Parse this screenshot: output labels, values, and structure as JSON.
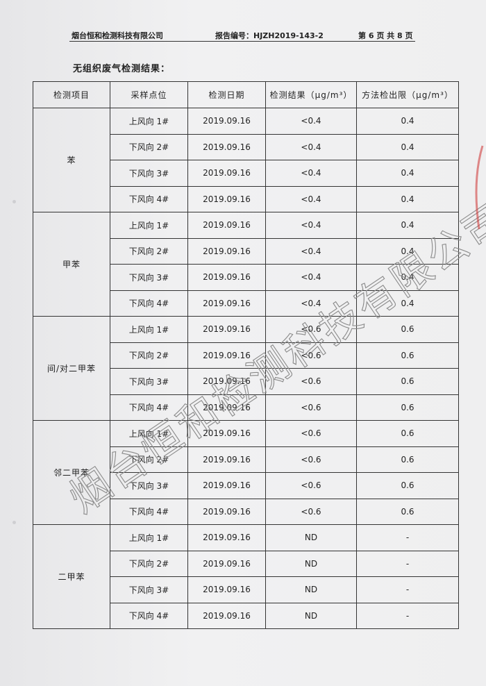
{
  "header": {
    "company": "烟台恒和检测科技有限公司",
    "report_no": "报告编号：HJZH2019-143-2",
    "page_info": "第 6 页 共 8 页"
  },
  "title": "无组织废气检测结果：",
  "columns": [
    "检测项目",
    "采样点位",
    "检测日期",
    "检测结果（μg/m³）",
    "方法检出限（μg/m³）"
  ],
  "groups": [
    {
      "item": "苯",
      "rows": [
        [
          "上风向 1#",
          "2019.09.16",
          "<0.4",
          "0.4"
        ],
        [
          "下风向 2#",
          "2019.09.16",
          "<0.4",
          "0.4"
        ],
        [
          "下风向 3#",
          "2019.09.16",
          "<0.4",
          "0.4"
        ],
        [
          "下风向 4#",
          "2019.09.16",
          "<0.4",
          "0.4"
        ]
      ]
    },
    {
      "item": "甲苯",
      "rows": [
        [
          "上风向 1#",
          "2019.09.16",
          "<0.4",
          "0.4"
        ],
        [
          "下风向 2#",
          "2019.09.16",
          "<0.4",
          "0.4"
        ],
        [
          "下风向 3#",
          "2019.09.16",
          "<0.4",
          "0.4"
        ],
        [
          "下风向 4#",
          "2019.09.16",
          "<0.4",
          "0.4"
        ]
      ]
    },
    {
      "item": "间/对二甲苯",
      "rows": [
        [
          "上风向 1#",
          "2019.09.16",
          "<0.6",
          "0.6"
        ],
        [
          "下风向 2#",
          "2019.09.16",
          "<0.6",
          "0.6"
        ],
        [
          "下风向 3#",
          "2019.09.16",
          "<0.6",
          "0.6"
        ],
        [
          "下风向 4#",
          "2019.09.16",
          "<0.6",
          "0.6"
        ]
      ]
    },
    {
      "item": "邻二甲苯",
      "rows": [
        [
          "上风向 1#",
          "2019.09.16",
          "<0.6",
          "0.6"
        ],
        [
          "下风向 2#",
          "2019.09.16",
          "<0.6",
          "0.6"
        ],
        [
          "下风向 3#",
          "2019.09.16",
          "<0.6",
          "0.6"
        ],
        [
          "下风向 4#",
          "2019.09.16",
          "<0.6",
          "0.6"
        ]
      ]
    },
    {
      "item": "二甲苯",
      "rows": [
        [
          "上风向 1#",
          "2019.09.16",
          "ND",
          "-"
        ],
        [
          "下风向 2#",
          "2019.09.16",
          "ND",
          "-"
        ],
        [
          "下风向 3#",
          "2019.09.16",
          "ND",
          "-"
        ],
        [
          "下风向 4#",
          "2019.09.16",
          "ND",
          "-"
        ]
      ]
    }
  ],
  "watermark": "烟台恒和检测科技有限公司",
  "colors": {
    "ink": "#222222",
    "watermark": "#9a9a9a",
    "seal": "#d04040"
  }
}
